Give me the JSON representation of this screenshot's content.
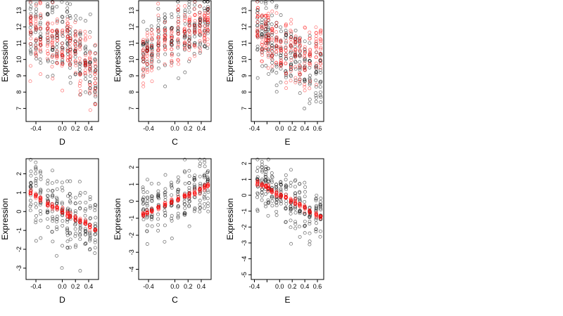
{
  "colors": {
    "black_points": "#000000",
    "red_points": "#ff0000"
  },
  "chart_data": [
    {
      "type": "scatter",
      "panel": "top-left",
      "xlabel": "D",
      "ylabel": "Expression",
      "xlim": [
        -0.55,
        0.55
      ],
      "ylim": [
        6.2,
        13.6
      ],
      "xticks": [
        -0.4,
        0.0,
        0.2,
        0.4
      ],
      "xticklabels": [
        "-0.4",
        "0.0",
        "0.2",
        "0.4"
      ],
      "yticks": [
        7,
        8,
        9,
        10,
        11,
        12,
        13
      ],
      "yticklabels": [
        "7",
        "8",
        "9",
        "10",
        "11",
        "12",
        "13"
      ],
      "x_centers": [
        -0.48,
        -0.4,
        -0.33,
        -0.22,
        -0.15,
        -0.08,
        0.0,
        0.08,
        0.12,
        0.2,
        0.27,
        0.35,
        0.42,
        0.5
      ],
      "series": [
        {
          "color": "black",
          "trend": [
            12.1,
            12.0,
            11.8,
            11.6,
            11.5,
            11.4,
            11.2,
            11.3,
            11.0,
            10.8,
            10.4,
            10.0,
            9.6,
            9.2
          ],
          "spread": 1.1
        },
        {
          "color": "red",
          "trend": [
            11.8,
            11.6,
            11.4,
            11.2,
            11.0,
            10.9,
            10.7,
            10.9,
            10.6,
            10.3,
            10.0,
            9.6,
            9.2,
            8.9
          ],
          "spread": 0.9
        }
      ]
    },
    {
      "type": "scatter",
      "panel": "top-middle",
      "xlabel": "C",
      "ylabel": "Expression",
      "xlim": [
        -0.55,
        0.55
      ],
      "ylim": [
        6.2,
        13.6
      ],
      "xticks": [
        -0.4,
        0.0,
        0.2,
        0.4
      ],
      "xticklabels": [
        "-0.4",
        "0.0",
        "0.2",
        "0.4"
      ],
      "yticks": [
        7,
        8,
        9,
        10,
        11,
        12,
        13
      ],
      "yticklabels": [
        "7",
        "8",
        "9",
        "10",
        "11",
        "12",
        "13"
      ],
      "x_centers": [
        -0.48,
        -0.42,
        -0.35,
        -0.25,
        -0.15,
        -0.05,
        0.05,
        0.15,
        0.22,
        0.3,
        0.38,
        0.45,
        0.5
      ],
      "series": [
        {
          "color": "black",
          "trend": [
            10.4,
            10.6,
            10.8,
            11.0,
            11.2,
            11.3,
            11.5,
            11.6,
            11.8,
            11.9,
            12.1,
            12.3,
            12.5
          ],
          "spread": 1.0
        },
        {
          "color": "red",
          "trend": [
            10.0,
            10.3,
            10.6,
            10.9,
            11.1,
            11.2,
            11.4,
            11.5,
            11.7,
            11.8,
            11.9,
            12.1,
            12.3
          ],
          "spread": 0.8
        }
      ]
    },
    {
      "type": "scatter",
      "panel": "top-right",
      "xlabel": "E",
      "ylabel": "Expression",
      "xlim": [
        -0.45,
        0.7
      ],
      "ylim": [
        6.2,
        13.6
      ],
      "xticks": [
        -0.4,
        -0.2,
        0.0,
        0.2,
        0.4,
        0.6
      ],
      "xticklabels": [
        "-0.4",
        "",
        "0.0",
        "0.2",
        "0.4",
        "0.6"
      ],
      "yticks": [
        7,
        8,
        9,
        10,
        11,
        12,
        13
      ],
      "yticklabels": [
        "7",
        "8",
        "9",
        "10",
        "11",
        "12",
        "13"
      ],
      "x_centers": [
        -0.35,
        -0.28,
        -0.22,
        -0.18,
        -0.12,
        -0.05,
        0.02,
        0.1,
        0.18,
        0.25,
        0.32,
        0.4,
        0.48,
        0.58,
        0.65
      ],
      "series": [
        {
          "color": "black",
          "trend": [
            12.0,
            11.9,
            11.6,
            11.3,
            11.1,
            10.9,
            10.7,
            10.4,
            10.1,
            9.8,
            9.4,
            9.0,
            9.0,
            9.2,
            9.0
          ],
          "spread": 1.1
        },
        {
          "color": "red",
          "trend": [
            11.9,
            11.7,
            11.4,
            11.1,
            10.9,
            10.8,
            10.7,
            10.6,
            10.5,
            10.3,
            10.1,
            10.0,
            10.3,
            10.6,
            10.4
          ],
          "spread": 0.9
        }
      ]
    },
    {
      "type": "scatter",
      "panel": "bottom-left",
      "xlabel": "D",
      "ylabel": "Expression",
      "xlim": [
        -0.55,
        0.55
      ],
      "ylim": [
        -3.6,
        2.8
      ],
      "xticks": [
        -0.4,
        0.0,
        0.2,
        0.4
      ],
      "xticklabels": [
        "-0.4",
        "0.0",
        "0.2",
        "0.4"
      ],
      "yticks": [
        -3,
        -2,
        -1,
        0,
        1,
        2
      ],
      "yticklabels": [
        "-3",
        "-2",
        "-1",
        "0",
        "1",
        "2"
      ],
      "x_centers": [
        -0.48,
        -0.4,
        -0.33,
        -0.22,
        -0.15,
        -0.08,
        0.0,
        0.08,
        0.12,
        0.2,
        0.27,
        0.35,
        0.42,
        0.5
      ],
      "series": [
        {
          "color": "black",
          "trend": [
            1.0,
            0.8,
            0.6,
            0.4,
            0.3,
            0.2,
            0.0,
            0.0,
            -0.1,
            -0.3,
            -0.5,
            -0.7,
            -0.9,
            -1.1
          ],
          "spread": 0.9
        },
        {
          "color": "red",
          "trend": [
            1.0,
            0.8,
            0.65,
            0.45,
            0.3,
            0.2,
            0.0,
            -0.1,
            -0.2,
            -0.35,
            -0.5,
            -0.65,
            -0.8,
            -0.95
          ],
          "spread": 0.08
        }
      ]
    },
    {
      "type": "scatter",
      "panel": "bottom-middle",
      "xlabel": "C",
      "ylabel": "Expression",
      "xlim": [
        -0.55,
        0.55
      ],
      "ylim": [
        -4.6,
        2.5
      ],
      "xticks": [
        -0.4,
        0.0,
        0.2,
        0.4
      ],
      "xticklabels": [
        "-0.4",
        "0.0",
        "0.2",
        "0.4"
      ],
      "yticks": [
        -4,
        -3,
        -2,
        -1,
        0,
        1,
        2
      ],
      "yticklabels": [
        "-4",
        "-3",
        "-2",
        "-1",
        "0",
        "1",
        "2"
      ],
      "x_centers": [
        -0.48,
        -0.42,
        -0.35,
        -0.25,
        -0.15,
        -0.05,
        0.05,
        0.15,
        0.22,
        0.3,
        0.38,
        0.45,
        0.5
      ],
      "series": [
        {
          "color": "black",
          "trend": [
            -0.8,
            -0.7,
            -0.6,
            -0.4,
            -0.2,
            -0.1,
            0.1,
            0.3,
            0.4,
            0.5,
            0.7,
            0.9,
            1.0
          ],
          "spread": 0.9
        },
        {
          "color": "red",
          "trend": [
            -0.8,
            -0.7,
            -0.55,
            -0.35,
            -0.2,
            -0.05,
            0.1,
            0.25,
            0.35,
            0.5,
            0.65,
            0.8,
            0.9
          ],
          "spread": 0.08
        }
      ]
    },
    {
      "type": "scatter",
      "panel": "bottom-right",
      "xlabel": "E",
      "ylabel": "Expression",
      "xlim": [
        -0.45,
        0.7
      ],
      "ylim": [
        -5.3,
        2.3
      ],
      "xticks": [
        -0.4,
        -0.2,
        0.0,
        0.2,
        0.4,
        0.6
      ],
      "xticklabels": [
        "-0.4",
        "",
        "0.0",
        "0.2",
        "0.4",
        "0.6"
      ],
      "yticks": [
        -5,
        -4,
        -3,
        -2,
        -1,
        0,
        1,
        2
      ],
      "yticklabels": [
        "-5",
        "-4",
        "-3",
        "-2",
        "-1",
        "0",
        "1",
        "2"
      ],
      "x_centers": [
        -0.35,
        -0.28,
        -0.22,
        -0.18,
        -0.12,
        -0.05,
        0.02,
        0.1,
        0.18,
        0.25,
        0.32,
        0.4,
        0.48,
        0.58,
        0.65
      ],
      "series": [
        {
          "color": "black",
          "trend": [
            0.7,
            0.6,
            0.5,
            0.4,
            0.3,
            0.1,
            0.0,
            -0.2,
            -0.4,
            -0.5,
            -0.7,
            -0.9,
            -1.0,
            -1.1,
            -1.2
          ],
          "spread": 0.8
        },
        {
          "color": "red",
          "trend": [
            0.8,
            0.65,
            0.55,
            0.45,
            0.3,
            0.15,
            0.0,
            -0.15,
            -0.3,
            -0.45,
            -0.6,
            -0.8,
            -1.0,
            -1.2,
            -1.35
          ],
          "spread": 0.08
        }
      ]
    }
  ]
}
